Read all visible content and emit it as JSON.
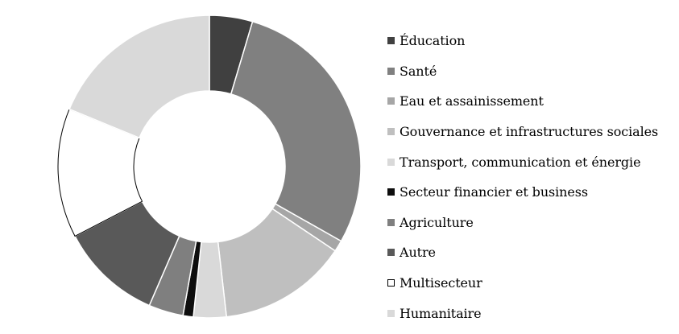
{
  "chart_data": {
    "type": "pie",
    "variant": "donut",
    "title": "",
    "legend_position": "right",
    "slices": [
      {
        "label": "Éducation",
        "value": 4.6,
        "color": "#404040"
      },
      {
        "label": "Santé",
        "value": 28.6,
        "color": "#808080"
      },
      {
        "label": "Eau et assainissement",
        "value": 1.2,
        "color": "#a6a6a6"
      },
      {
        "label": "Gouvernance et infrastructures sociales",
        "value": 13.8,
        "color": "#bfbfbf"
      },
      {
        "label": "Transport, communication et énergie",
        "value": 3.5,
        "color": "#d9d9d9"
      },
      {
        "label": "Secteur financier et business",
        "value": 1.1,
        "color": "#0d0d0d"
      },
      {
        "label": "Agriculture",
        "value": 3.7,
        "color": "#7f7f7f"
      },
      {
        "label": "Autre",
        "value": 10.9,
        "color": "#595959"
      },
      {
        "label": "Multisecteur",
        "value": 13.8,
        "color": "#ffffff"
      },
      {
        "label": "Humanitaire",
        "value": 18.8,
        "color": "#d9d9d9"
      }
    ]
  }
}
